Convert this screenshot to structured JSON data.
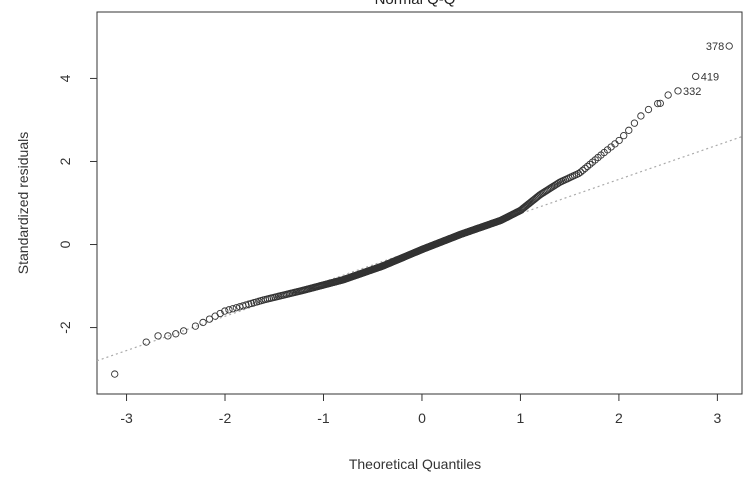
{
  "chart_data": {
    "type": "scatter",
    "title": "Normal Q-Q",
    "xlabel": "Theoretical Quantiles",
    "ylabel": "Standardized residuals",
    "xlim": [
      -3.3,
      3.25
    ],
    "ylim": [
      -3.6,
      5.6
    ],
    "x_ticks": [
      -3,
      -2,
      -1,
      0,
      1,
      2,
      3
    ],
    "y_ticks": [
      -2,
      0,
      2,
      4
    ],
    "grid": false,
    "legend": "none",
    "reference_line": {
      "style": "dotted",
      "color": "#aaaaaa",
      "points": [
        [
          -3.3,
          -2.8
        ],
        [
          3.25,
          2.6
        ]
      ]
    },
    "curve": [
      [
        -3.12,
        -3.12
      ],
      [
        -2.8,
        -2.35
      ],
      [
        -2.6,
        -2.2
      ],
      [
        -2.4,
        -2.08
      ],
      [
        -2.2,
        -1.85
      ],
      [
        -2.0,
        -1.6
      ],
      [
        -1.6,
        -1.33
      ],
      [
        -1.2,
        -1.1
      ],
      [
        -0.8,
        -0.85
      ],
      [
        -0.4,
        -0.52
      ],
      [
        0.0,
        -0.12
      ],
      [
        0.4,
        0.25
      ],
      [
        0.8,
        0.58
      ],
      [
        1.0,
        0.82
      ],
      [
        1.2,
        1.2
      ],
      [
        1.4,
        1.5
      ],
      [
        1.6,
        1.72
      ],
      [
        1.8,
        2.12
      ],
      [
        2.0,
        2.5
      ],
      [
        2.1,
        2.75
      ],
      [
        2.2,
        3.05
      ],
      [
        2.35,
        3.35
      ],
      [
        2.45,
        3.45
      ]
    ],
    "sparse_points": [
      [
        -3.12,
        -3.12
      ],
      [
        -2.8,
        -2.35
      ],
      [
        -2.68,
        -2.2
      ],
      [
        -2.58,
        -2.2
      ],
      [
        -2.5,
        -2.15
      ],
      [
        -2.42,
        -2.08
      ],
      [
        2.42,
        3.4
      ],
      [
        2.5,
        3.6
      ],
      [
        2.6,
        3.7
      ],
      [
        2.78,
        4.05
      ],
      [
        3.12,
        4.78
      ]
    ],
    "point_count": 420,
    "labeled_points": [
      {
        "label": "378",
        "x": 3.12,
        "y": 4.78
      },
      {
        "label": "419",
        "x": 2.78,
        "y": 4.05
      },
      {
        "label": "332",
        "x": 2.6,
        "y": 3.7
      }
    ],
    "marker": "open-circle",
    "marker_color": "#333333"
  }
}
